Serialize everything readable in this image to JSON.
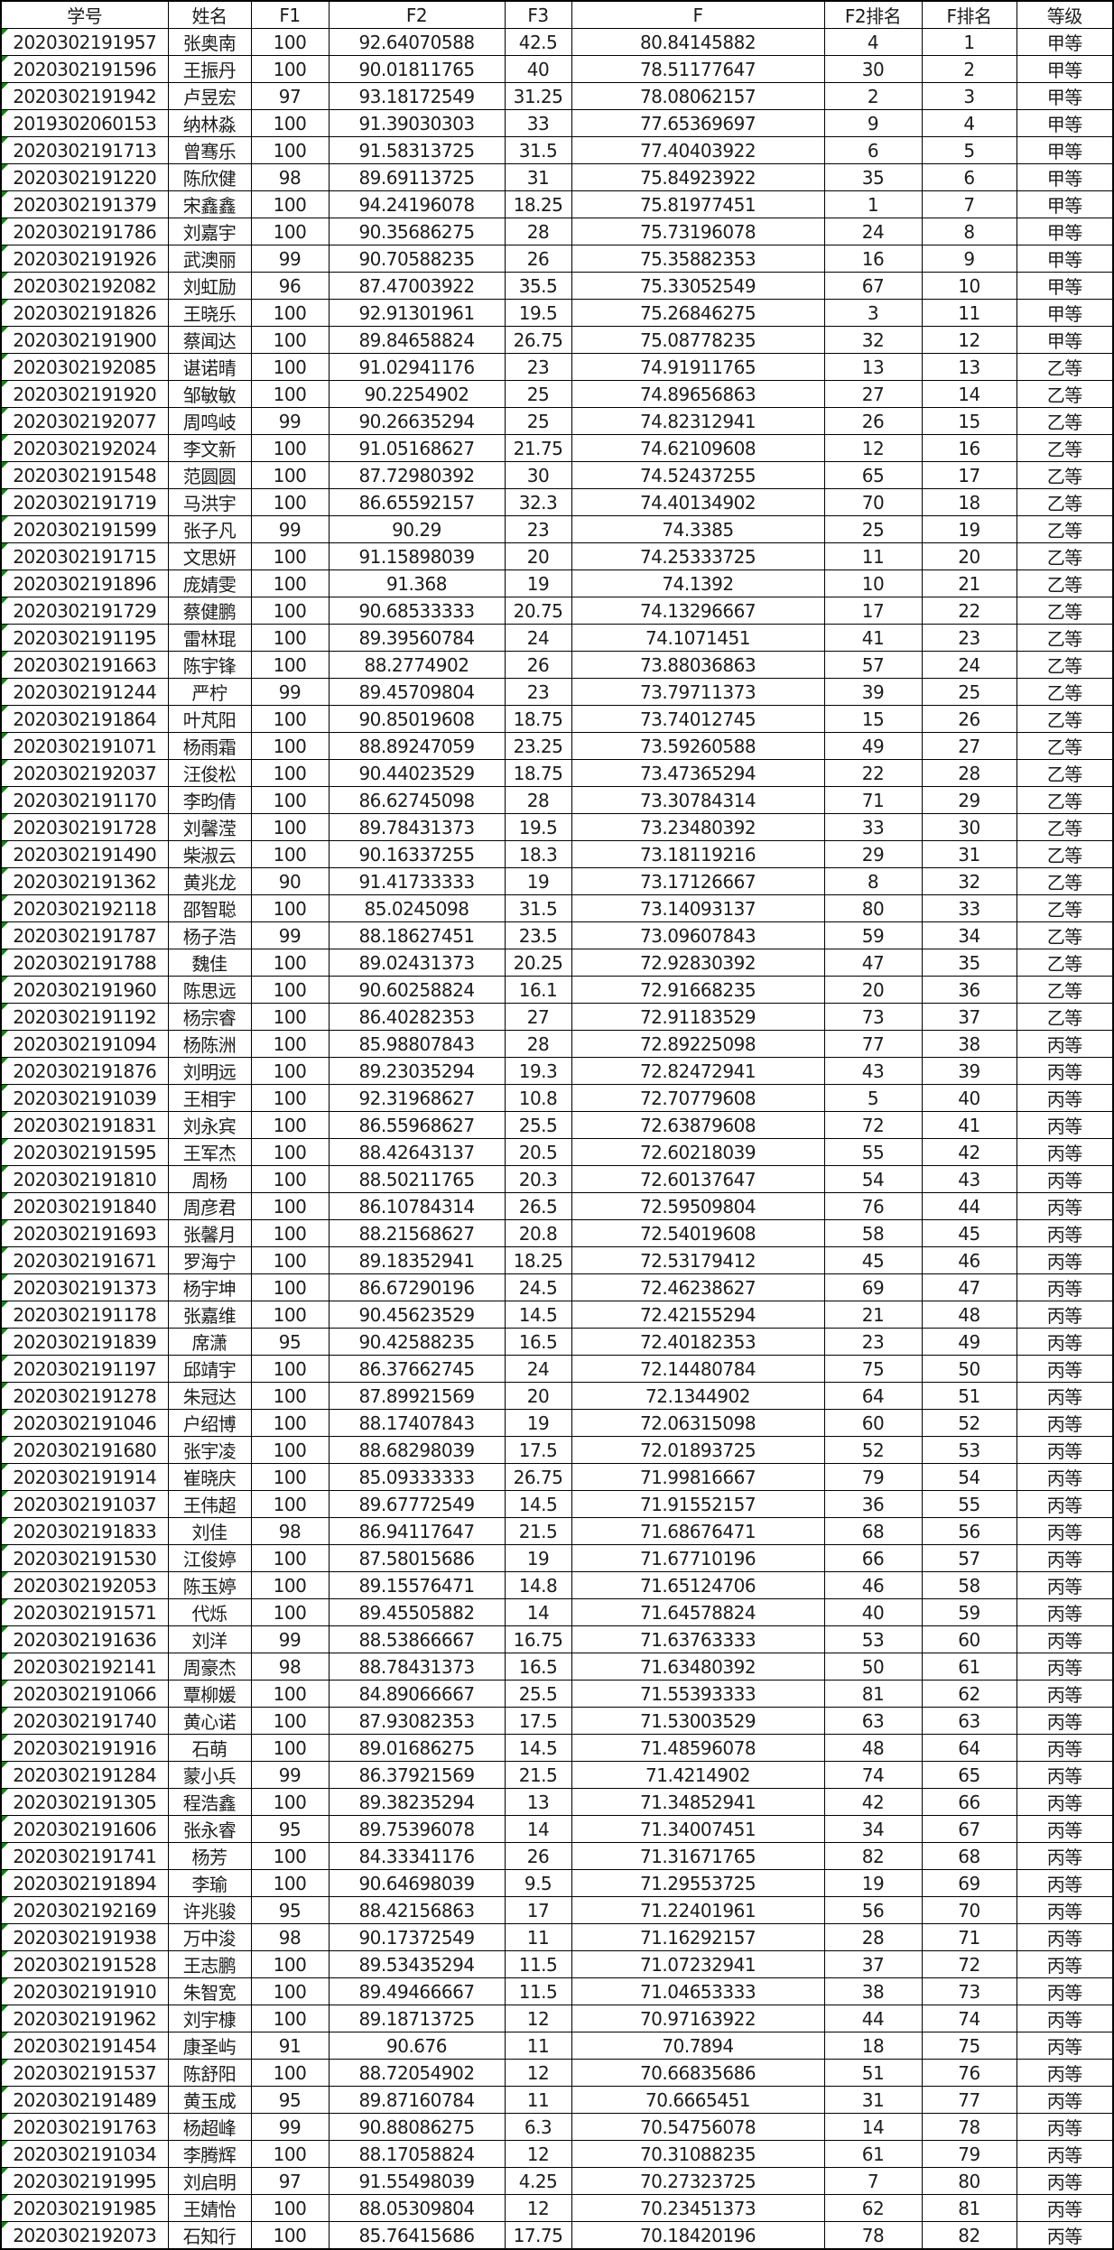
{
  "table": {
    "headers": [
      "学号",
      "姓名",
      "F1",
      "F2",
      "F3",
      "F",
      "F2排名",
      "F排名",
      "等级"
    ],
    "rows": [
      [
        "2020302191957",
        "张奥南",
        "100",
        "92.64070588",
        "42.5",
        "80.84145882",
        "4",
        "1",
        "甲等"
      ],
      [
        "2020302191596",
        "王振丹",
        "100",
        "90.01811765",
        "40",
        "78.51177647",
        "30",
        "2",
        "甲等"
      ],
      [
        "2020302191942",
        "卢昱宏",
        "97",
        "93.18172549",
        "31.25",
        "78.08062157",
        "2",
        "3",
        "甲等"
      ],
      [
        "2019302060153",
        "纳林淼",
        "100",
        "91.39030303",
        "33",
        "77.65369697",
        "9",
        "4",
        "甲等"
      ],
      [
        "2020302191713",
        "曾骞乐",
        "100",
        "91.58313725",
        "31.5",
        "77.40403922",
        "6",
        "5",
        "甲等"
      ],
      [
        "2020302191220",
        "陈欣健",
        "98",
        "89.69113725",
        "31",
        "75.84923922",
        "35",
        "6",
        "甲等"
      ],
      [
        "2020302191379",
        "宋鑫鑫",
        "100",
        "94.24196078",
        "18.25",
        "75.81977451",
        "1",
        "7",
        "甲等"
      ],
      [
        "2020302191786",
        "刘嘉宇",
        "100",
        "90.35686275",
        "28",
        "75.73196078",
        "24",
        "8",
        "甲等"
      ],
      [
        "2020302191926",
        "武澳丽",
        "99",
        "90.70588235",
        "26",
        "75.35882353",
        "16",
        "9",
        "甲等"
      ],
      [
        "2020302192082",
        "刘虹励",
        "96",
        "87.47003922",
        "35.5",
        "75.33052549",
        "67",
        "10",
        "甲等"
      ],
      [
        "2020302191826",
        "王晓乐",
        "100",
        "92.91301961",
        "19.5",
        "75.26846275",
        "3",
        "11",
        "甲等"
      ],
      [
        "2020302191900",
        "蔡闻达",
        "100",
        "89.84658824",
        "26.75",
        "75.08778235",
        "32",
        "12",
        "甲等"
      ],
      [
        "2020302192085",
        "谌诺晴",
        "100",
        "91.02941176",
        "23",
        "74.91911765",
        "13",
        "13",
        "乙等"
      ],
      [
        "2020302191920",
        "邹敏敏",
        "100",
        "90.2254902",
        "25",
        "74.89656863",
        "27",
        "14",
        "乙等"
      ],
      [
        "2020302192077",
        "周鸣岐",
        "99",
        "90.26635294",
        "25",
        "74.82312941",
        "26",
        "15",
        "乙等"
      ],
      [
        "2020302192024",
        "李文新",
        "100",
        "91.05168627",
        "21.75",
        "74.62109608",
        "12",
        "16",
        "乙等"
      ],
      [
        "2020302191548",
        "范圆圆",
        "100",
        "87.72980392",
        "30",
        "74.52437255",
        "65",
        "17",
        "乙等"
      ],
      [
        "2020302191719",
        "马洪宇",
        "100",
        "86.65592157",
        "32.3",
        "74.40134902",
        "70",
        "18",
        "乙等"
      ],
      [
        "2020302191599",
        "张子凡",
        "99",
        "90.29",
        "23",
        "74.3385",
        "25",
        "19",
        "乙等"
      ],
      [
        "2020302191715",
        "文思妍",
        "100",
        "91.15898039",
        "20",
        "74.25333725",
        "11",
        "20",
        "乙等"
      ],
      [
        "2020302191896",
        "庞婧雯",
        "100",
        "91.368",
        "19",
        "74.1392",
        "10",
        "21",
        "乙等"
      ],
      [
        "2020302191729",
        "蔡健鹏",
        "100",
        "90.68533333",
        "20.75",
        "74.13296667",
        "17",
        "22",
        "乙等"
      ],
      [
        "2020302191195",
        "雷林琨",
        "100",
        "89.39560784",
        "24",
        "74.1071451",
        "41",
        "23",
        "乙等"
      ],
      [
        "2020302191663",
        "陈宇锋",
        "100",
        "88.2774902",
        "26",
        "73.88036863",
        "57",
        "24",
        "乙等"
      ],
      [
        "2020302191244",
        "严柠",
        "99",
        "89.45709804",
        "23",
        "73.79711373",
        "39",
        "25",
        "乙等"
      ],
      [
        "2020302191864",
        "叶芃阳",
        "100",
        "90.85019608",
        "18.75",
        "73.74012745",
        "15",
        "26",
        "乙等"
      ],
      [
        "2020302191071",
        "杨雨霜",
        "100",
        "88.89247059",
        "23.25",
        "73.59260588",
        "49",
        "27",
        "乙等"
      ],
      [
        "2020302192037",
        "汪俊松",
        "100",
        "90.44023529",
        "18.75",
        "73.47365294",
        "22",
        "28",
        "乙等"
      ],
      [
        "2020302191170",
        "李昀倩",
        "100",
        "86.62745098",
        "28",
        "73.30784314",
        "71",
        "29",
        "乙等"
      ],
      [
        "2020302191728",
        "刘馨滢",
        "100",
        "89.78431373",
        "19.5",
        "73.23480392",
        "33",
        "30",
        "乙等"
      ],
      [
        "2020302191490",
        "柴淑云",
        "100",
        "90.16337255",
        "18.3",
        "73.18119216",
        "29",
        "31",
        "乙等"
      ],
      [
        "2020302191362",
        "黄兆龙",
        "90",
        "91.41733333",
        "19",
        "73.17126667",
        "8",
        "32",
        "乙等"
      ],
      [
        "2020302192118",
        "邵智聪",
        "100",
        "85.0245098",
        "31.5",
        "73.14093137",
        "80",
        "33",
        "乙等"
      ],
      [
        "2020302191787",
        "杨子浩",
        "99",
        "88.18627451",
        "23.5",
        "73.09607843",
        "59",
        "34",
        "乙等"
      ],
      [
        "2020302191788",
        "魏佳",
        "100",
        "89.02431373",
        "20.25",
        "72.92830392",
        "47",
        "35",
        "乙等"
      ],
      [
        "2020302191960",
        "陈思远",
        "100",
        "90.60258824",
        "16.1",
        "72.91668235",
        "20",
        "36",
        "乙等"
      ],
      [
        "2020302191192",
        "杨宗睿",
        "100",
        "86.40282353",
        "27",
        "72.91183529",
        "73",
        "37",
        "乙等"
      ],
      [
        "2020302191094",
        "杨陈洲",
        "100",
        "85.98807843",
        "28",
        "72.89225098",
        "77",
        "38",
        "丙等"
      ],
      [
        "2020302191876",
        "刘明远",
        "100",
        "89.23035294",
        "19.3",
        "72.82472941",
        "43",
        "39",
        "丙等"
      ],
      [
        "2020302191039",
        "王相宇",
        "100",
        "92.31968627",
        "10.8",
        "72.70779608",
        "5",
        "40",
        "丙等"
      ],
      [
        "2020302191831",
        "刘永宾",
        "100",
        "86.55968627",
        "25.5",
        "72.63879608",
        "72",
        "41",
        "丙等"
      ],
      [
        "2020302191595",
        "王军杰",
        "100",
        "88.42643137",
        "20.5",
        "72.60218039",
        "55",
        "42",
        "丙等"
      ],
      [
        "2020302191810",
        "周杨",
        "100",
        "88.50211765",
        "20.3",
        "72.60137647",
        "54",
        "43",
        "丙等"
      ],
      [
        "2020302191840",
        "周彦君",
        "100",
        "86.10784314",
        "26.5",
        "72.59509804",
        "76",
        "44",
        "丙等"
      ],
      [
        "2020302191693",
        "张馨月",
        "100",
        "88.21568627",
        "20.8",
        "72.54019608",
        "58",
        "45",
        "丙等"
      ],
      [
        "2020302191671",
        "罗海宁",
        "100",
        "89.18352941",
        "18.25",
        "72.53179412",
        "45",
        "46",
        "丙等"
      ],
      [
        "2020302191373",
        "杨宇坤",
        "100",
        "86.67290196",
        "24.5",
        "72.46238627",
        "69",
        "47",
        "丙等"
      ],
      [
        "2020302191178",
        "张嘉维",
        "100",
        "90.45623529",
        "14.5",
        "72.42155294",
        "21",
        "48",
        "丙等"
      ],
      [
        "2020302191839",
        "席潇",
        "95",
        "90.42588235",
        "16.5",
        "72.40182353",
        "23",
        "49",
        "丙等"
      ],
      [
        "2020302191197",
        "邱靖宇",
        "100",
        "86.37662745",
        "24",
        "72.14480784",
        "75",
        "50",
        "丙等"
      ],
      [
        "2020302191278",
        "朱冠达",
        "100",
        "87.89921569",
        "20",
        "72.1344902",
        "64",
        "51",
        "丙等"
      ],
      [
        "2020302191046",
        "户绍博",
        "100",
        "88.17407843",
        "19",
        "72.06315098",
        "60",
        "52",
        "丙等"
      ],
      [
        "2020302191680",
        "张宇凌",
        "100",
        "88.68298039",
        "17.5",
        "72.01893725",
        "52",
        "53",
        "丙等"
      ],
      [
        "2020302191914",
        "崔晓庆",
        "100",
        "85.09333333",
        "26.75",
        "71.99816667",
        "79",
        "54",
        "丙等"
      ],
      [
        "2020302191037",
        "王伟超",
        "100",
        "89.67772549",
        "14.5",
        "71.91552157",
        "36",
        "55",
        "丙等"
      ],
      [
        "2020302191833",
        "刘佳",
        "98",
        "86.94117647",
        "21.5",
        "71.68676471",
        "68",
        "56",
        "丙等"
      ],
      [
        "2020302191530",
        "江俊婷",
        "100",
        "87.58015686",
        "19",
        "71.67710196",
        "66",
        "57",
        "丙等"
      ],
      [
        "2020302192053",
        "陈玉婷",
        "100",
        "89.15576471",
        "14.8",
        "71.65124706",
        "46",
        "58",
        "丙等"
      ],
      [
        "2020302191571",
        "代烁",
        "100",
        "89.45505882",
        "14",
        "71.64578824",
        "40",
        "59",
        "丙等"
      ],
      [
        "2020302191636",
        "刘洋",
        "99",
        "88.53866667",
        "16.75",
        "71.63763333",
        "53",
        "60",
        "丙等"
      ],
      [
        "2020302192141",
        "周豪杰",
        "98",
        "88.78431373",
        "16.5",
        "71.63480392",
        "50",
        "61",
        "丙等"
      ],
      [
        "2020302191066",
        "覃柳媛",
        "100",
        "84.89066667",
        "25.5",
        "71.55393333",
        "81",
        "62",
        "丙等"
      ],
      [
        "2020302191740",
        "黄心诺",
        "100",
        "87.93082353",
        "17.5",
        "71.53003529",
        "63",
        "63",
        "丙等"
      ],
      [
        "2020302191916",
        "石萌",
        "100",
        "89.01686275",
        "14.5",
        "71.48596078",
        "48",
        "64",
        "丙等"
      ],
      [
        "2020302191284",
        "蒙小兵",
        "99",
        "86.37921569",
        "21.5",
        "71.4214902",
        "74",
        "65",
        "丙等"
      ],
      [
        "2020302191305",
        "程浩鑫",
        "100",
        "89.38235294",
        "13",
        "71.34852941",
        "42",
        "66",
        "丙等"
      ],
      [
        "2020302191606",
        "张永睿",
        "95",
        "89.75396078",
        "14",
        "71.34007451",
        "34",
        "67",
        "丙等"
      ],
      [
        "2020302191741",
        "杨芳",
        "100",
        "84.33341176",
        "26",
        "71.31671765",
        "82",
        "68",
        "丙等"
      ],
      [
        "2020302191894",
        "李瑜",
        "100",
        "90.64698039",
        "9.5",
        "71.29553725",
        "19",
        "69",
        "丙等"
      ],
      [
        "2020302192169",
        "许兆骏",
        "95",
        "88.42156863",
        "17",
        "71.22401961",
        "56",
        "70",
        "丙等"
      ],
      [
        "2020302191938",
        "万中浚",
        "98",
        "90.17372549",
        "11",
        "71.16292157",
        "28",
        "71",
        "丙等"
      ],
      [
        "2020302191528",
        "王志鹏",
        "100",
        "89.53435294",
        "11.5",
        "71.07232941",
        "37",
        "72",
        "丙等"
      ],
      [
        "2020302191910",
        "朱智宽",
        "100",
        "89.49466667",
        "11.5",
        "71.04653333",
        "38",
        "73",
        "丙等"
      ],
      [
        "2020302191962",
        "刘宇槺",
        "100",
        "89.18713725",
        "12",
        "70.97163922",
        "44",
        "74",
        "丙等"
      ],
      [
        "2020302191454",
        "康圣屿",
        "91",
        "90.676",
        "11",
        "70.7894",
        "18",
        "75",
        "丙等"
      ],
      [
        "2020302191537",
        "陈舒阳",
        "100",
        "88.72054902",
        "12",
        "70.66835686",
        "51",
        "76",
        "丙等"
      ],
      [
        "2020302191489",
        "黄玉成",
        "95",
        "89.87160784",
        "11",
        "70.6665451",
        "31",
        "77",
        "丙等"
      ],
      [
        "2020302191763",
        "杨超峰",
        "99",
        "90.88086275",
        "6.3",
        "70.54756078",
        "14",
        "78",
        "丙等"
      ],
      [
        "2020302191034",
        "李腾辉",
        "100",
        "88.17058824",
        "12",
        "70.31088235",
        "61",
        "79",
        "丙等"
      ],
      [
        "2020302191995",
        "刘启明",
        "97",
        "91.55498039",
        "4.25",
        "70.27323725",
        "7",
        "80",
        "丙等"
      ],
      [
        "2020302191985",
        "王婧怡",
        "100",
        "88.05309804",
        "12",
        "70.23451373",
        "62",
        "81",
        "丙等"
      ],
      [
        "2020302192073",
        "石知行",
        "100",
        "85.76415686",
        "17.75",
        "70.18420196",
        "78",
        "82",
        "丙等"
      ]
    ]
  },
  "colors": {
    "grid": "#000000",
    "text": "#1c1c1c",
    "background": "#ffffff",
    "indicator_green": "#148214"
  },
  "icons": {
    "number_as_text_indicator": "green-corner-triangle"
  }
}
